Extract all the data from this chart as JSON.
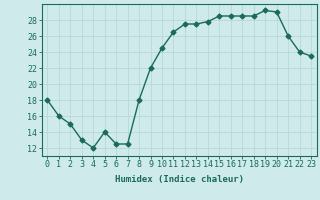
{
  "x": [
    0,
    1,
    2,
    3,
    4,
    5,
    6,
    7,
    8,
    9,
    10,
    11,
    12,
    13,
    14,
    15,
    16,
    17,
    18,
    19,
    20,
    21,
    22,
    23
  ],
  "y": [
    18,
    16,
    15,
    13,
    12,
    14,
    12.5,
    12.5,
    18,
    22,
    24.5,
    26.5,
    27.5,
    27.5,
    27.8,
    28.5,
    28.5,
    28.5,
    28.5,
    29.2,
    29,
    26,
    24,
    23.5
  ],
  "line_color": "#1a6b5a",
  "marker": "D",
  "marker_size": 2.5,
  "bg_color": "#ceeaea",
  "grid_color": "#b8d8d8",
  "xlabel": "Humidex (Indice chaleur)",
  "xlim": [
    -0.5,
    23.5
  ],
  "ylim": [
    11,
    30
  ],
  "yticks": [
    12,
    14,
    16,
    18,
    20,
    22,
    24,
    26,
    28
  ],
  "xticks": [
    0,
    1,
    2,
    3,
    4,
    5,
    6,
    7,
    8,
    9,
    10,
    11,
    12,
    13,
    14,
    15,
    16,
    17,
    18,
    19,
    20,
    21,
    22,
    23
  ],
  "tick_color": "#1a6b5a",
  "label_fontsize": 6.5,
  "tick_fontsize": 6
}
